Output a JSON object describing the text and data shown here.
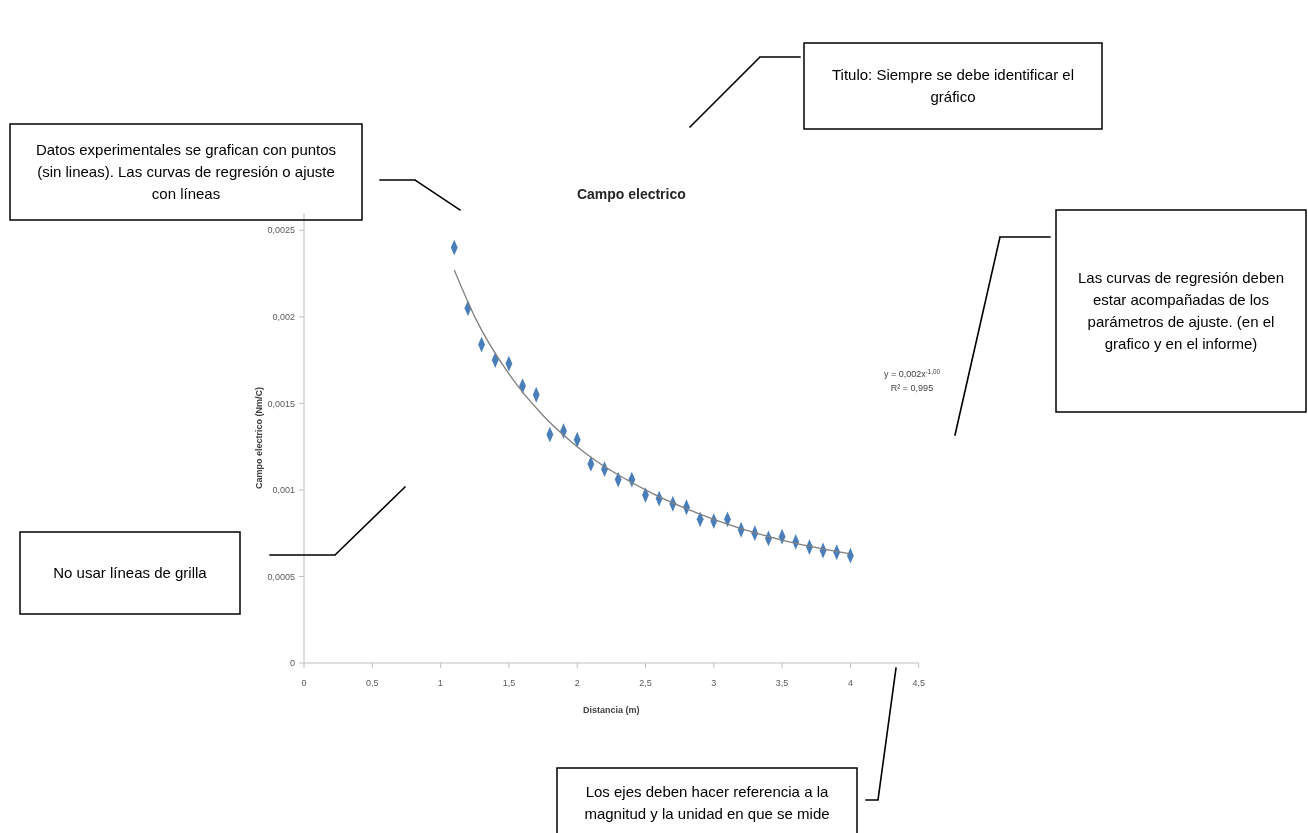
{
  "chart_data": {
    "type": "scatter",
    "title": "Campo electrico",
    "xlabel": "Distancia (m)",
    "ylabel": "Campo electrico (Nm/C)",
    "xlim": [
      0,
      4.5
    ],
    "ylim": [
      0,
      0.0026
    ],
    "xticks": [
      0,
      {
        "value": 0.5,
        "label": "0,5"
      },
      1,
      {
        "value": 1.5,
        "label": "1,5"
      },
      2,
      {
        "value": 2.5,
        "label": "2,5"
      },
      3,
      {
        "value": 3.5,
        "label": "3,5"
      },
      4,
      {
        "value": 4.5,
        "label": "4,5"
      }
    ],
    "yticks": [
      0,
      {
        "value": 0.0005,
        "label": "0,0005"
      },
      {
        "value": 0.001,
        "label": "0,001"
      },
      {
        "value": 0.0015,
        "label": "0,0015"
      },
      {
        "value": 0.002,
        "label": "0,002"
      },
      {
        "value": 0.0025,
        "label": "0,0025"
      }
    ],
    "grid": false,
    "series": [
      {
        "type": "scatter",
        "color": "#4a7ebb",
        "marker": "diamond",
        "x": [
          1.1,
          1.2,
          1.3,
          1.4,
          1.5,
          1.6,
          1.7,
          1.8,
          1.9,
          2.0,
          2.1,
          2.2,
          2.3,
          2.4,
          2.5,
          2.6,
          2.7,
          2.8,
          2.9,
          3.0,
          3.1,
          3.2,
          3.3,
          3.4,
          3.5,
          3.6,
          3.7,
          3.8,
          3.9,
          4.0
        ],
        "values": [
          0.0024,
          0.00205,
          0.00184,
          0.00175,
          0.00173,
          0.0016,
          0.00155,
          0.00132,
          0.00134,
          0.00129,
          0.00115,
          0.00112,
          0.00106,
          0.00106,
          0.00097,
          0.00095,
          0.00092,
          0.0009,
          0.00083,
          0.00082,
          0.00083,
          0.00077,
          0.00075,
          0.00072,
          0.00073,
          0.0007,
          0.00067,
          0.00065,
          0.00064,
          0.00062
        ]
      },
      {
        "type": "line",
        "color": "#808080",
        "marker": "none",
        "line_style": "solid",
        "x": [
          1.1,
          1.25,
          1.5,
          1.75,
          2,
          2.5,
          3,
          3.5,
          4
        ],
        "values": [
          0.00227,
          0.002,
          0.00167,
          0.00143,
          0.00125,
          0.001,
          0.00083,
          0.00071,
          0.00063
        ]
      }
    ],
    "annotations": [
      "Datos experimentales se grafican con puntos (sin lineas). Las curvas de regresión o ajuste con líneas",
      "Titulo: Siempre se debe identificar el gráfico",
      "Las curvas de regresión deben estar acompañadas de los parámetros de ajuste. (en el grafico y en el informe)",
      "No usar líneas de grilla",
      "Los ejes deben hacer referencia a la magnitud y la unidad en que se mide",
      "y = 0,002x$^{-1,00}$",
      "R² = 0,995"
    ]
  }
}
